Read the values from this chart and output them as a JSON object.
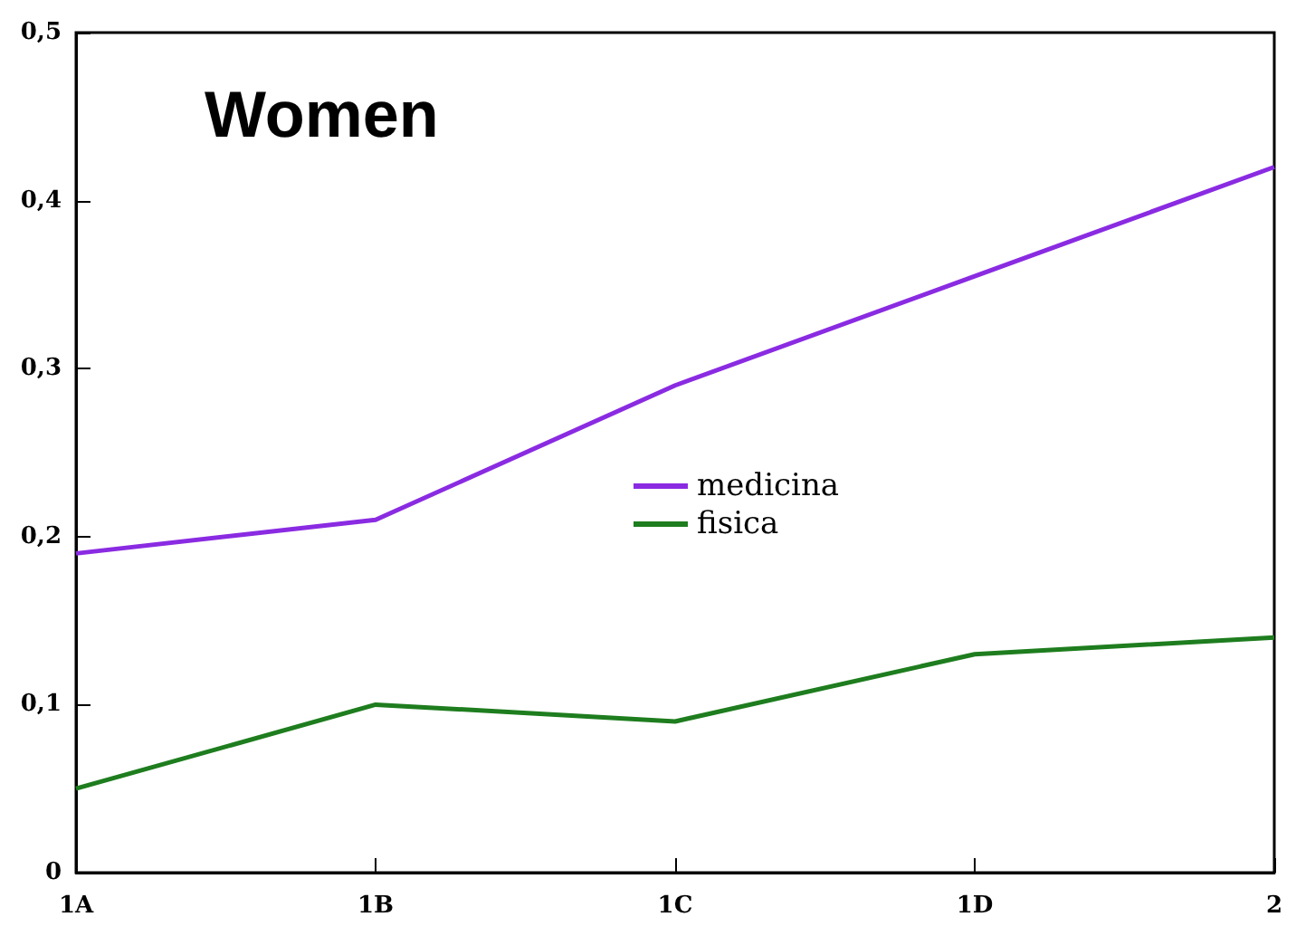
{
  "chart_data": {
    "type": "line",
    "title": "Women",
    "categories": [
      "1A",
      "1B",
      "1C",
      "1D",
      "2"
    ],
    "series": [
      {
        "name": "medicina",
        "color": "#8a2be2",
        "values": [
          0.19,
          0.21,
          0.29,
          0.355,
          0.42
        ]
      },
      {
        "name": "fisica",
        "color": "#1e7d1e",
        "values": [
          0.05,
          0.1,
          0.09,
          0.13,
          0.14
        ]
      }
    ],
    "ylim": [
      0,
      0.5
    ],
    "yticks": [
      {
        "value": 0,
        "label": "0"
      },
      {
        "value": 0.1,
        "label": "0,1"
      },
      {
        "value": 0.2,
        "label": "0,2"
      },
      {
        "value": 0.3,
        "label": "0,3"
      },
      {
        "value": 0.4,
        "label": "0,4"
      },
      {
        "value": 0.5,
        "label": "0,5"
      }
    ],
    "legend": "center",
    "grid": false,
    "marker": "none",
    "line_style": "solid"
  }
}
